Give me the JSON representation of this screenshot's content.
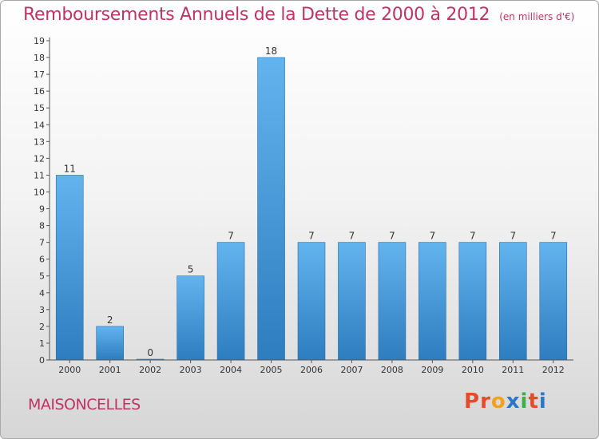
{
  "header": {
    "title": "Remboursements Annuels de la Dette de 2000 à 2012",
    "unit_note": "(en milliers d'€)"
  },
  "footer": {
    "city": "MAISONCELLES",
    "brand": "Proxiti",
    "brand_colors": [
      "#e8492a",
      "#e8492a",
      "#f2a21a",
      "#2a78c8",
      "#3bb04a",
      "#e8492a",
      "#2a78c8"
    ]
  },
  "colors": {
    "accent": "#bf3465",
    "bar_light": "#62b4ee",
    "bar_dark": "#2e7dbf"
  },
  "chart_data": {
    "type": "bar",
    "categories": [
      "2000",
      "2001",
      "2002",
      "2003",
      "2004",
      "2005",
      "2006",
      "2007",
      "2008",
      "2009",
      "2010",
      "2011",
      "2012"
    ],
    "values": [
      11,
      2,
      0,
      5,
      7,
      18,
      7,
      7,
      7,
      7,
      7,
      7,
      7
    ],
    "ylim": [
      0,
      19
    ],
    "yticks": [
      0,
      1,
      2,
      3,
      4,
      5,
      6,
      7,
      8,
      9,
      10,
      11,
      12,
      13,
      14,
      15,
      16,
      17,
      18,
      19
    ],
    "grid": false,
    "data_labels": true
  }
}
